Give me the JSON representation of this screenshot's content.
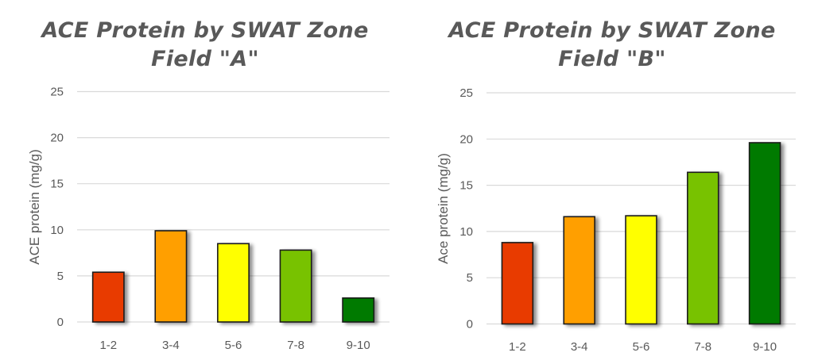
{
  "chart_data": [
    {
      "type": "bar",
      "title": "ACE Protein by SWAT Zone",
      "subtitle": "Field \"A\"",
      "xlabel": "",
      "ylabel": "ACE protein (mg/g)",
      "categories": [
        "1-2",
        "3-4",
        "5-6",
        "7-8",
        "9-10"
      ],
      "values": [
        5.4,
        9.9,
        8.5,
        7.8,
        2.6
      ],
      "colors": [
        "#e83a00",
        "#ff9f00",
        "#ffff00",
        "#78c200",
        "#007a00"
      ],
      "ylim": [
        0,
        25
      ],
      "yticks": [
        0,
        5,
        10,
        15,
        20,
        25
      ],
      "grid": true,
      "legend": "none"
    },
    {
      "type": "bar",
      "title": "ACE Protein by SWAT Zone",
      "subtitle": "Field \"B\"",
      "xlabel": "",
      "ylabel": "Ace protein (mg/g)",
      "categories": [
        "1-2",
        "3-4",
        "5-6",
        "7-8",
        "9-10"
      ],
      "values": [
        8.8,
        11.6,
        11.7,
        16.4,
        19.6
      ],
      "colors": [
        "#e83a00",
        "#ff9f00",
        "#ffff00",
        "#78c200",
        "#007a00"
      ],
      "ylim": [
        0,
        25
      ],
      "yticks": [
        0,
        5,
        10,
        15,
        20,
        25
      ],
      "grid": true,
      "legend": "none"
    }
  ]
}
